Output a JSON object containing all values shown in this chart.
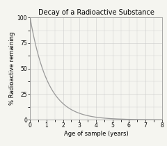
{
  "title": "Decay of a Radioactive Substance",
  "xlabel": "Age of sample (years)",
  "ylabel": "% Radioactive remaining",
  "xlim": [
    0,
    8
  ],
  "ylim": [
    0,
    100
  ],
  "xticks": [
    0,
    1,
    2,
    3,
    4,
    5,
    6,
    7,
    8
  ],
  "yticks": [
    0,
    25,
    50,
    75,
    100
  ],
  "curve_color": "#999999",
  "background_color": "#f5f5f0",
  "grid_color": "#cccccc",
  "title_fontsize": 7.0,
  "label_fontsize": 6.0,
  "tick_fontsize": 5.5,
  "half_life": 0.75,
  "line_width": 0.9
}
